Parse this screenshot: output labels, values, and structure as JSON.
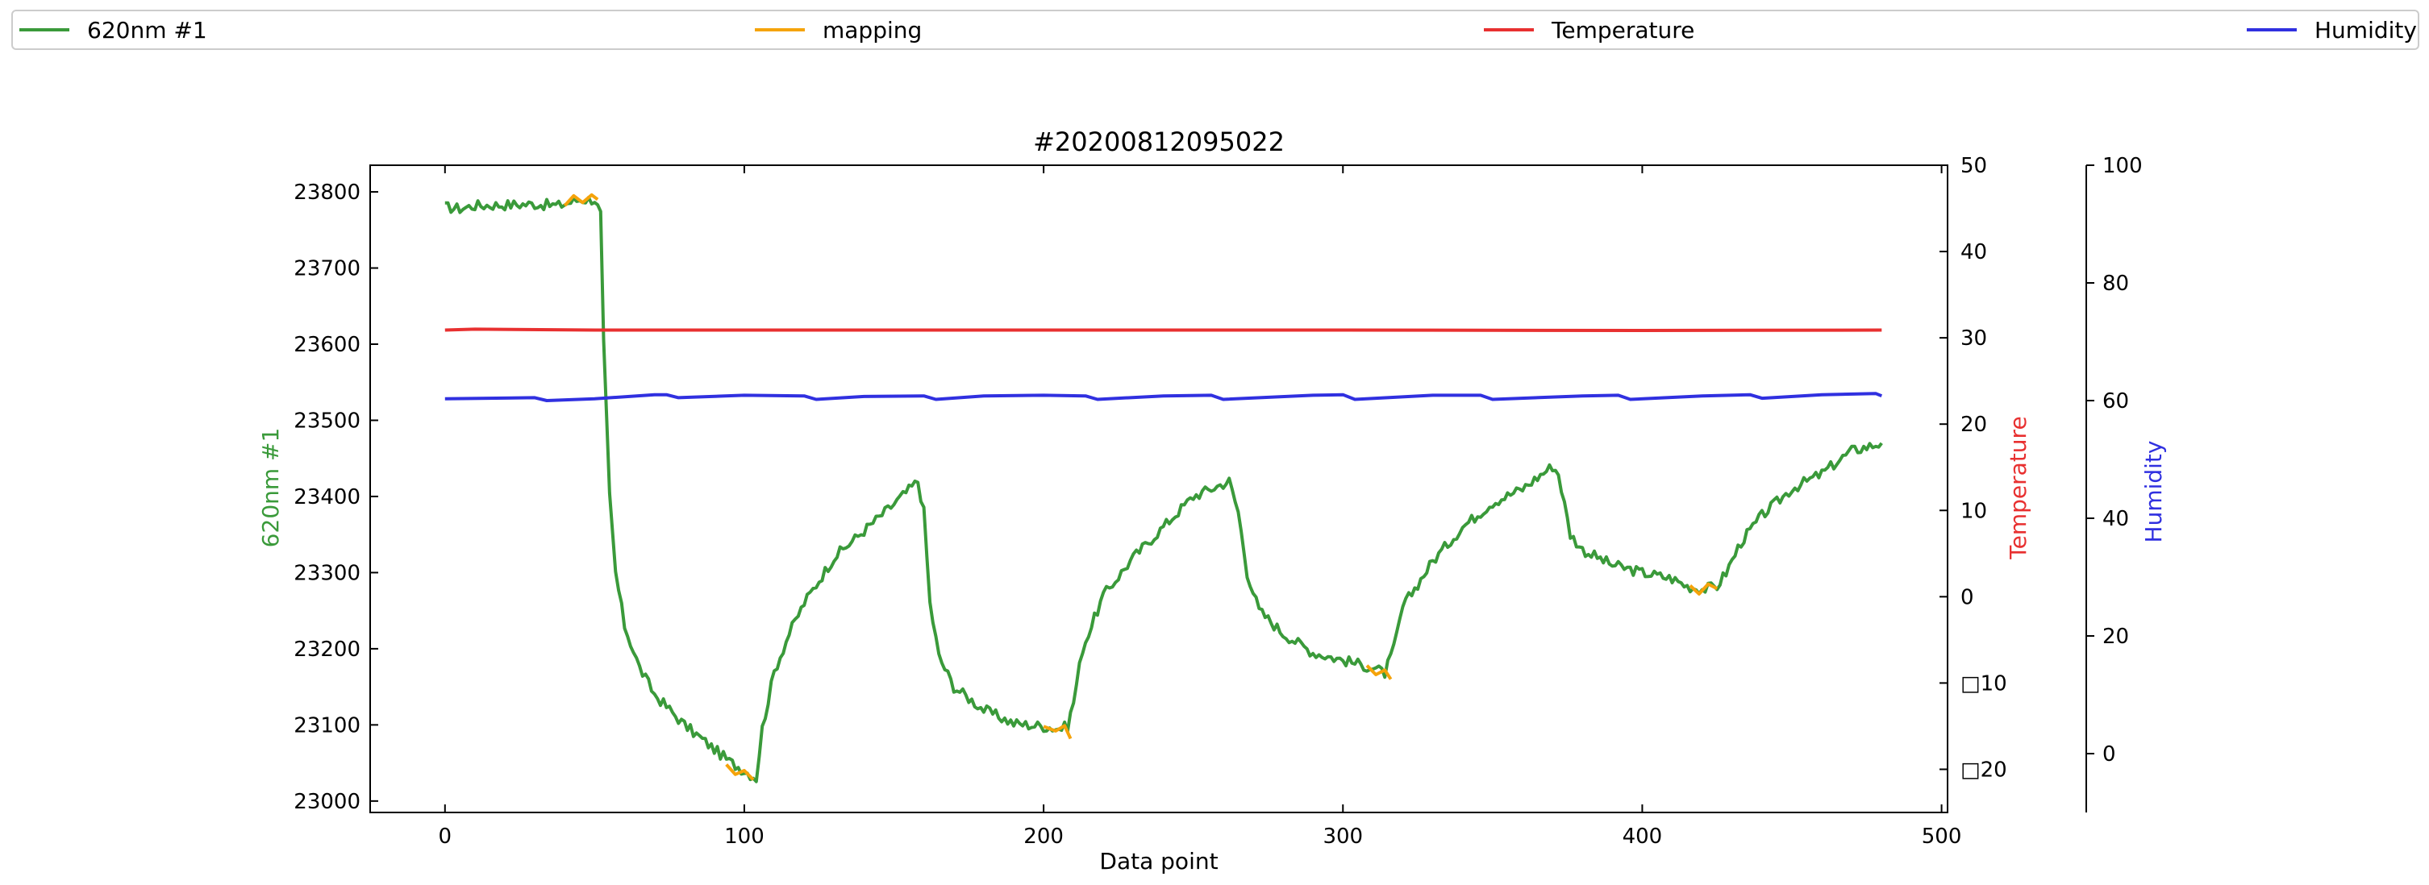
{
  "legend": {
    "items": [
      {
        "label": "620nm #1",
        "color": "#3a9a3a"
      },
      {
        "label": "mapping",
        "color": "#f5a30a"
      },
      {
        "label": "Temperature",
        "color": "#e83030"
      },
      {
        "label": "Humidity",
        "color": "#3030e0"
      }
    ]
  },
  "chart_data": {
    "type": "line",
    "title": "#20200812095022",
    "xlabel": "Data point",
    "x_range": [
      -25,
      502
    ],
    "x_ticks": [
      "0",
      "100",
      "200",
      "300",
      "400",
      "500"
    ],
    "grid": false,
    "legend_position": "top",
    "axes": {
      "left": {
        "label": "620nm #1",
        "color": "#3a9a3a",
        "range": [
          22985,
          23835
        ],
        "ticks": [
          "23000",
          "23100",
          "23200",
          "23300",
          "23400",
          "23500",
          "23600",
          "23700",
          "23800"
        ]
      },
      "temperature": {
        "label": "Temperature",
        "color": "#e83030",
        "range": [
          -25,
          50
        ],
        "ticks": [
          "□20",
          "□10",
          "0",
          "10",
          "20",
          "30",
          "40",
          "50"
        ]
      },
      "humidity": {
        "label": "Humidity",
        "color": "#3030e0",
        "range": [
          -10,
          100
        ],
        "ticks": [
          "0",
          "20",
          "40",
          "60",
          "80",
          "100"
        ]
      }
    },
    "series": [
      {
        "name": "620nm #1",
        "axis": "left",
        "color": "#3a9a3a",
        "points": [
          [
            0,
            23780
          ],
          [
            5,
            23778
          ],
          [
            10,
            23782
          ],
          [
            20,
            23783
          ],
          [
            30,
            23784
          ],
          [
            38,
            23782
          ],
          [
            45,
            23790
          ],
          [
            50,
            23790
          ],
          [
            52,
            23770
          ],
          [
            53,
            23600
          ],
          [
            55,
            23400
          ],
          [
            57,
            23300
          ],
          [
            60,
            23230
          ],
          [
            65,
            23175
          ],
          [
            70,
            23140
          ],
          [
            80,
            23100
          ],
          [
            90,
            23068
          ],
          [
            95,
            23052
          ],
          [
            100,
            23040
          ],
          [
            104,
            23030
          ],
          [
            106,
            23095
          ],
          [
            110,
            23170
          ],
          [
            115,
            23220
          ],
          [
            120,
            23260
          ],
          [
            130,
            23320
          ],
          [
            140,
            23355
          ],
          [
            150,
            23390
          ],
          [
            158,
            23420
          ],
          [
            160,
            23380
          ],
          [
            162,
            23260
          ],
          [
            165,
            23190
          ],
          [
            170,
            23150
          ],
          [
            180,
            23120
          ],
          [
            190,
            23102
          ],
          [
            200,
            23098
          ],
          [
            205,
            23095
          ],
          [
            208,
            23098
          ],
          [
            210,
            23130
          ],
          [
            213,
            23200
          ],
          [
            220,
            23270
          ],
          [
            230,
            23320
          ],
          [
            240,
            23360
          ],
          [
            250,
            23400
          ],
          [
            262,
            23420
          ],
          [
            265,
            23380
          ],
          [
            268,
            23300
          ],
          [
            272,
            23250
          ],
          [
            280,
            23220
          ],
          [
            290,
            23195
          ],
          [
            300,
            23185
          ],
          [
            305,
            23180
          ],
          [
            310,
            23175
          ],
          [
            314,
            23168
          ],
          [
            317,
            23200
          ],
          [
            320,
            23255
          ],
          [
            330,
            23315
          ],
          [
            340,
            23360
          ],
          [
            350,
            23392
          ],
          [
            360,
            23410
          ],
          [
            370,
            23440
          ],
          [
            372,
            23430
          ],
          [
            376,
            23350
          ],
          [
            380,
            23330
          ],
          [
            390,
            23310
          ],
          [
            400,
            23300
          ],
          [
            410,
            23292
          ],
          [
            415,
            23282
          ],
          [
            420,
            23278
          ],
          [
            425,
            23282
          ],
          [
            428,
            23300
          ],
          [
            433,
            23340
          ],
          [
            440,
            23375
          ],
          [
            450,
            23410
          ],
          [
            460,
            23430
          ],
          [
            470,
            23460
          ],
          [
            480,
            23470
          ]
        ]
      },
      {
        "name": "mapping",
        "axis": "left",
        "color": "#f5a30a",
        "segments": [
          [
            [
              40,
              23782
            ],
            [
              43,
              23795
            ],
            [
              46,
              23786
            ],
            [
              49,
              23796
            ],
            [
              51,
              23790
            ]
          ],
          [
            [
              94,
              23048
            ],
            [
              97,
              23035
            ],
            [
              100,
              23040
            ],
            [
              103,
              23028
            ]
          ],
          [
            [
              200,
              23098
            ],
            [
              204,
              23092
            ],
            [
              207,
              23099
            ],
            [
              209,
              23082
            ]
          ],
          [
            [
              308,
              23178
            ],
            [
              311,
              23166
            ],
            [
              314,
              23172
            ],
            [
              316,
              23160
            ]
          ],
          [
            [
              416,
              23283
            ],
            [
              419,
              23272
            ],
            [
              422,
              23285
            ],
            [
              425,
              23279
            ]
          ]
        ]
      },
      {
        "name": "Temperature",
        "axis": "temperature",
        "color": "#e83030",
        "points": [
          [
            0,
            30.9
          ],
          [
            10,
            31.0
          ],
          [
            50,
            30.9
          ],
          [
            100,
            30.9
          ],
          [
            200,
            30.9
          ],
          [
            300,
            30.9
          ],
          [
            400,
            30.85
          ],
          [
            480,
            30.9
          ]
        ]
      },
      {
        "name": "Humidity",
        "axis": "humidity",
        "color": "#3030e0",
        "points": [
          [
            0,
            60.3
          ],
          [
            30,
            60.5
          ],
          [
            34,
            60.0
          ],
          [
            50,
            60.3
          ],
          [
            70,
            61.0
          ],
          [
            74,
            61.0
          ],
          [
            78,
            60.5
          ],
          [
            100,
            60.9
          ],
          [
            120,
            60.8
          ],
          [
            124,
            60.2
          ],
          [
            140,
            60.7
          ],
          [
            160,
            60.8
          ],
          [
            164,
            60.2
          ],
          [
            180,
            60.8
          ],
          [
            200,
            60.9
          ],
          [
            214,
            60.8
          ],
          [
            218,
            60.2
          ],
          [
            240,
            60.8
          ],
          [
            256,
            60.9
          ],
          [
            260,
            60.2
          ],
          [
            290,
            60.9
          ],
          [
            300,
            61.0
          ],
          [
            304,
            60.2
          ],
          [
            330,
            60.9
          ],
          [
            346,
            60.9
          ],
          [
            350,
            60.2
          ],
          [
            380,
            60.8
          ],
          [
            392,
            60.9
          ],
          [
            396,
            60.2
          ],
          [
            420,
            60.8
          ],
          [
            436,
            61.0
          ],
          [
            440,
            60.4
          ],
          [
            460,
            61.0
          ],
          [
            478,
            61.2
          ],
          [
            480,
            60.8
          ]
        ]
      }
    ]
  }
}
